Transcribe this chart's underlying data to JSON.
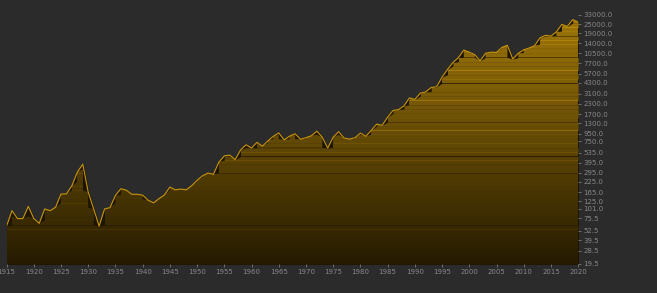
{
  "background_color": "#2b2b2b",
  "line_color": "#c8960c",
  "fill_color_light": "#7a5c00",
  "fill_color_dark": "#1e1500",
  "x_start": 1915,
  "x_end": 2020,
  "yticks": [
    19.5,
    28.5,
    39.5,
    52.5,
    75.5,
    101.0,
    125.0,
    165.0,
    225.0,
    295.0,
    395.0,
    535.0,
    750.0,
    950.0,
    1300.0,
    1700.0,
    2300.0,
    3100.0,
    4300.0,
    5700.0,
    7700.0,
    10500.0,
    14000.0,
    19000.0,
    25000.0,
    33000.0
  ],
  "xticks": [
    1915,
    1920,
    1925,
    1930,
    1935,
    1940,
    1945,
    1950,
    1955,
    1960,
    1965,
    1970,
    1975,
    1980,
    1985,
    1990,
    1995,
    2000,
    2005,
    2010,
    2015,
    2020
  ],
  "ymin": 19.5,
  "ymax": 43000.0,
  "djia_data": {
    "1915": 60,
    "1916": 95,
    "1917": 75,
    "1918": 75,
    "1919": 108,
    "1920": 75,
    "1921": 65,
    "1922": 100,
    "1923": 95,
    "1924": 105,
    "1925": 156,
    "1926": 157,
    "1927": 200,
    "1928": 300,
    "1929": 380,
    "1930": 165,
    "1931": 100,
    "1932": 60,
    "1933": 100,
    "1934": 104,
    "1935": 150,
    "1936": 183,
    "1937": 175,
    "1938": 155,
    "1939": 155,
    "1940": 151,
    "1941": 130,
    "1942": 120,
    "1943": 136,
    "1944": 152,
    "1945": 192,
    "1946": 177,
    "1947": 181,
    "1948": 177,
    "1949": 200,
    "1950": 235,
    "1951": 269,
    "1952": 292,
    "1953": 281,
    "1954": 404,
    "1955": 488,
    "1956": 499,
    "1957": 436,
    "1958": 584,
    "1959": 679,
    "1960": 616,
    "1961": 731,
    "1962": 652,
    "1963": 762,
    "1964": 874,
    "1965": 969,
    "1966": 786,
    "1967": 879,
    "1968": 944,
    "1969": 800,
    "1970": 839,
    "1971": 890,
    "1972": 1020,
    "1973": 851,
    "1974": 616,
    "1975": 852,
    "1976": 1005,
    "1977": 831,
    "1978": 805,
    "1979": 838,
    "1980": 964,
    "1981": 875,
    "1982": 1047,
    "1983": 1259,
    "1984": 1212,
    "1985": 1547,
    "1986": 1896,
    "1987": 1939,
    "1988": 2169,
    "1989": 2753,
    "1990": 2634,
    "1991": 3169,
    "1992": 3301,
    "1993": 3754,
    "1994": 3834,
    "1995": 5117,
    "1996": 6448,
    "1997": 7908,
    "1998": 9181,
    "1999": 11497,
    "2000": 10787,
    "2001": 10022,
    "2002": 8342,
    "2003": 10454,
    "2004": 10783,
    "2005": 10717,
    "2006": 12463,
    "2007": 13265,
    "2008": 8776,
    "2009": 10428,
    "2010": 11578,
    "2011": 12218,
    "2012": 13104,
    "2013": 16577,
    "2014": 17823,
    "2015": 17425,
    "2016": 19763,
    "2017": 24719,
    "2018": 23327,
    "2019": 28538,
    "2020": 26501
  }
}
